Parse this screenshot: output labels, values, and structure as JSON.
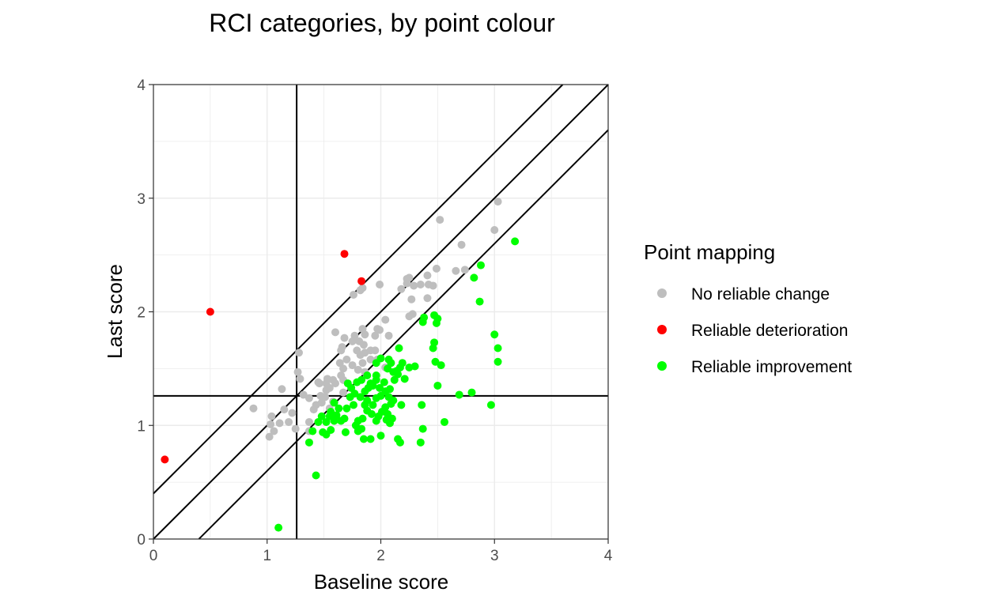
{
  "chart_data": {
    "type": "scatter",
    "title": "RCI categories, by point colour",
    "xlabel": "Baseline score",
    "ylabel": "Last score",
    "xlim": [
      0,
      4
    ],
    "ylim": [
      0,
      4
    ],
    "x_ticks": [
      "0",
      "1",
      "2",
      "3",
      "4"
    ],
    "y_ticks": [
      "0",
      "1",
      "2",
      "3",
      "4"
    ],
    "grid": true,
    "legend_title": "Point mapping",
    "legend_position": "right",
    "reference_lines": {
      "vertical_x": 1.26,
      "horizontal_y": 1.26,
      "diagonals": [
        {
          "slope": 1,
          "intercept": 0.4
        },
        {
          "slope": 1,
          "intercept": 0
        },
        {
          "slope": 1,
          "intercept": -0.4
        }
      ]
    },
    "series": [
      {
        "name": "No reliable change",
        "color": "#bebebe",
        "points": [
          [
            3.03,
            2.97
          ],
          [
            3.0,
            2.72
          ],
          [
            2.52,
            2.81
          ],
          [
            2.71,
            2.59
          ],
          [
            2.74,
            2.37
          ],
          [
            2.66,
            2.36
          ],
          [
            2.49,
            2.38
          ],
          [
            2.41,
            2.32
          ],
          [
            2.42,
            2.24
          ],
          [
            2.46,
            2.23
          ],
          [
            2.41,
            2.12
          ],
          [
            2.35,
            2.24
          ],
          [
            2.25,
            2.3
          ],
          [
            2.23,
            2.29
          ],
          [
            2.23,
            2.25
          ],
          [
            2.29,
            2.23
          ],
          [
            2.18,
            2.2
          ],
          [
            2.27,
            2.11
          ],
          [
            2.28,
            1.98
          ],
          [
            2.25,
            1.96
          ],
          [
            1.99,
            2.24
          ],
          [
            1.84,
            2.21
          ],
          [
            1.76,
            2.15
          ],
          [
            1.82,
            2.19
          ],
          [
            1.6,
            1.82
          ],
          [
            1.68,
            1.77
          ],
          [
            1.77,
            1.79
          ],
          [
            1.84,
            1.85
          ],
          [
            1.86,
            1.8
          ],
          [
            1.97,
            1.85
          ],
          [
            1.99,
            1.84
          ],
          [
            1.95,
            1.79
          ],
          [
            2.04,
            1.93
          ],
          [
            2.07,
            1.79
          ],
          [
            1.81,
            1.74
          ],
          [
            1.75,
            1.74
          ],
          [
            1.85,
            1.71
          ],
          [
            1.91,
            1.66
          ],
          [
            1.86,
            1.64
          ],
          [
            1.82,
            1.62
          ],
          [
            1.79,
            1.66
          ],
          [
            1.95,
            1.66
          ],
          [
            1.65,
            1.66
          ],
          [
            1.66,
            1.69
          ],
          [
            1.7,
            1.58
          ],
          [
            1.64,
            1.55
          ],
          [
            1.67,
            1.5
          ],
          [
            1.75,
            1.53
          ],
          [
            1.8,
            1.49
          ],
          [
            1.84,
            1.55
          ],
          [
            1.91,
            1.58
          ],
          [
            1.86,
            1.47
          ],
          [
            1.97,
            1.58
          ],
          [
            2.04,
            1.51
          ],
          [
            1.28,
            1.64
          ],
          [
            1.27,
            1.47
          ],
          [
            1.29,
            1.41
          ],
          [
            1.45,
            1.38
          ],
          [
            1.52,
            1.37
          ],
          [
            1.58,
            1.4
          ],
          [
            1.65,
            1.44
          ],
          [
            1.67,
            1.4
          ],
          [
            1.55,
            1.33
          ],
          [
            1.6,
            1.37
          ],
          [
            1.53,
            1.41
          ],
          [
            1.46,
            1.37
          ],
          [
            1.52,
            1.31
          ],
          [
            1.67,
            1.29
          ],
          [
            1.32,
            1.27
          ],
          [
            1.37,
            1.24
          ],
          [
            1.47,
            1.26
          ],
          [
            1.51,
            1.25
          ],
          [
            1.48,
            1.2
          ],
          [
            1.43,
            1.18
          ],
          [
            1.41,
            1.14
          ],
          [
            1.58,
            1.21
          ],
          [
            1.55,
            1.15
          ],
          [
            1.13,
            1.32
          ],
          [
            0.88,
            1.15
          ],
          [
            1.15,
            1.14
          ],
          [
            1.22,
            1.11
          ],
          [
            1.04,
            1.08
          ],
          [
            1.11,
            1.02
          ],
          [
            1.19,
            1.03
          ],
          [
            1.37,
            1.03
          ],
          [
            1.03,
            1.01
          ],
          [
            1.06,
            0.95
          ],
          [
            1.25,
            0.97
          ],
          [
            1.37,
            0.95
          ],
          [
            1.02,
            0.9
          ]
        ]
      },
      {
        "name": "Reliable deterioration",
        "color": "#ff0000",
        "points": [
          [
            0.1,
            0.7
          ],
          [
            0.5,
            2.0
          ],
          [
            1.68,
            2.51
          ],
          [
            1.83,
            2.27
          ]
        ]
      },
      {
        "name": "Reliable improvement",
        "color": "#00ff00",
        "points": [
          [
            3.18,
            2.62
          ],
          [
            2.88,
            2.41
          ],
          [
            2.82,
            2.3
          ],
          [
            2.87,
            2.09
          ],
          [
            3.0,
            1.8
          ],
          [
            3.03,
            1.68
          ],
          [
            3.03,
            1.56
          ],
          [
            2.97,
            1.18
          ],
          [
            2.8,
            1.29
          ],
          [
            2.69,
            1.27
          ],
          [
            2.56,
            1.03
          ],
          [
            2.53,
            1.53
          ],
          [
            2.5,
            1.35
          ],
          [
            2.48,
            1.56
          ],
          [
            2.46,
            1.68
          ],
          [
            2.47,
            1.73
          ],
          [
            2.49,
            1.9
          ],
          [
            2.47,
            1.97
          ],
          [
            2.5,
            1.94
          ],
          [
            2.38,
            1.95
          ],
          [
            2.37,
            1.91
          ],
          [
            2.36,
            1.18
          ],
          [
            2.37,
            0.97
          ],
          [
            2.35,
            0.85
          ],
          [
            2.17,
            0.85
          ],
          [
            2.15,
            0.88
          ],
          [
            2.05,
            1.05
          ],
          [
            2.08,
            1.02
          ],
          [
            2.18,
            1.18
          ],
          [
            2.25,
            1.51
          ],
          [
            2.3,
            1.52
          ],
          [
            2.21,
            1.41
          ],
          [
            2.19,
            1.55
          ],
          [
            2.17,
            1.51
          ],
          [
            2.16,
            1.68
          ],
          [
            2.14,
            1.48
          ],
          [
            2.11,
            1.47
          ],
          [
            2.09,
            1.55
          ],
          [
            2.07,
            1.58
          ],
          [
            2.06,
            1.5
          ],
          [
            2.0,
            1.59
          ],
          [
            1.96,
            1.55
          ],
          [
            1.96,
            1.44
          ],
          [
            1.96,
            1.4
          ],
          [
            1.91,
            1.37
          ],
          [
            1.88,
            1.44
          ],
          [
            1.83,
            1.4
          ],
          [
            1.79,
            1.38
          ],
          [
            1.74,
            1.33
          ],
          [
            1.71,
            1.37
          ],
          [
            1.77,
            1.28
          ],
          [
            1.82,
            1.25
          ],
          [
            1.86,
            1.3
          ],
          [
            1.89,
            1.33
          ],
          [
            1.93,
            1.35
          ],
          [
            1.96,
            1.24
          ],
          [
            2.0,
            1.26
          ],
          [
            2.04,
            1.3
          ],
          [
            2.08,
            1.32
          ],
          [
            2.07,
            1.25
          ],
          [
            2.11,
            1.22
          ],
          [
            2.09,
            1.19
          ],
          [
            2.04,
            1.16
          ],
          [
            2.01,
            1.12
          ],
          [
            1.98,
            1.08
          ],
          [
            1.96,
            1.04
          ],
          [
            2.06,
            1.1
          ],
          [
            2.1,
            1.06
          ],
          [
            1.93,
            1.18
          ],
          [
            1.88,
            1.13
          ],
          [
            1.84,
            1.06
          ],
          [
            1.8,
            1.04
          ],
          [
            1.78,
            1.0
          ],
          [
            1.83,
            0.97
          ],
          [
            1.8,
            0.95
          ],
          [
            1.85,
            0.88
          ],
          [
            1.91,
            0.88
          ],
          [
            2.0,
            0.91
          ],
          [
            1.68,
            1.06
          ],
          [
            1.65,
            1.04
          ],
          [
            1.69,
            0.94
          ],
          [
            1.61,
            1.09
          ],
          [
            1.59,
            1.04
          ],
          [
            1.56,
            1.12
          ],
          [
            1.55,
            1.08
          ],
          [
            1.52,
            1.03
          ],
          [
            1.49,
            0.94
          ],
          [
            1.48,
            1.08
          ],
          [
            1.45,
            1.03
          ],
          [
            1.4,
            0.95
          ],
          [
            1.37,
            0.85
          ],
          [
            1.52,
            0.92
          ],
          [
            1.56,
            0.96
          ],
          [
            1.43,
            0.56
          ],
          [
            1.1,
            0.1
          ],
          [
            1.63,
            1.15
          ],
          [
            1.59,
            1.2
          ],
          [
            1.73,
            1.25
          ],
          [
            1.7,
            1.15
          ],
          [
            1.76,
            1.18
          ],
          [
            1.88,
            1.22
          ],
          [
            1.92,
            1.1
          ],
          [
            2.12,
            1.4
          ],
          [
            2.15,
            1.45
          ],
          [
            2.03,
            1.38
          ],
          [
            1.99,
            1.33
          ],
          [
            1.86,
            1.18
          ]
        ]
      }
    ]
  }
}
